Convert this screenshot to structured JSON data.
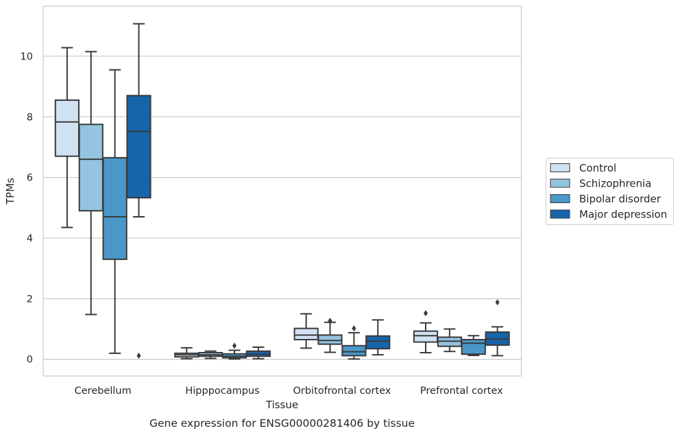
{
  "chart_data": {
    "type": "boxplot",
    "xlabel": "Tissue",
    "ylabel": "TPMs",
    "caption": "Gene expression for ENSG00000281406 by tissue",
    "categories": [
      "Cerebellum",
      "Hipppocampus",
      "Orbitofrontal cortex",
      "Prefrontal cortex"
    ],
    "ylim": [
      -0.55,
      11.65
    ],
    "yticks": [
      0,
      2,
      4,
      6,
      8,
      10
    ],
    "grid": true,
    "legend_position": "right",
    "series": [
      {
        "name": "Control",
        "color": "#d0e1f2",
        "boxes": [
          {
            "whisker_low": 4.35,
            "q1": 6.7,
            "median": 7.83,
            "q3": 8.55,
            "whisker_high": 10.28,
            "outliers": []
          },
          {
            "whisker_low": 0.02,
            "q1": 0.08,
            "median": 0.15,
            "q3": 0.2,
            "whisker_high": 0.38,
            "outliers": []
          },
          {
            "whisker_low": 0.37,
            "q1": 0.65,
            "median": 0.8,
            "q3": 1.02,
            "whisker_high": 1.5,
            "outliers": []
          },
          {
            "whisker_low": 0.22,
            "q1": 0.57,
            "median": 0.78,
            "q3": 0.93,
            "whisker_high": 1.2,
            "outliers": [
              1.52
            ]
          }
        ]
      },
      {
        "name": "Schizophrenia",
        "color": "#94c4df",
        "boxes": [
          {
            "whisker_low": 1.48,
            "q1": 4.9,
            "median": 6.6,
            "q3": 7.75,
            "whisker_high": 10.15,
            "outliers": []
          },
          {
            "whisker_low": 0.03,
            "q1": 0.1,
            "median": 0.15,
            "q3": 0.22,
            "whisker_high": 0.27,
            "outliers": []
          },
          {
            "whisker_low": 0.23,
            "q1": 0.5,
            "median": 0.62,
            "q3": 0.8,
            "whisker_high": 1.22,
            "outliers": [
              1.27,
              1.25
            ]
          },
          {
            "whisker_low": 0.26,
            "q1": 0.43,
            "median": 0.6,
            "q3": 0.73,
            "whisker_high": 1.0,
            "outliers": []
          }
        ]
      },
      {
        "name": "Bipolar disorder",
        "color": "#4a98c9",
        "boxes": [
          {
            "whisker_low": 0.2,
            "q1": 3.3,
            "median": 4.7,
            "q3": 6.65,
            "whisker_high": 9.55,
            "outliers": []
          },
          {
            "whisker_low": 0.01,
            "q1": 0.05,
            "median": 0.1,
            "q3": 0.18,
            "whisker_high": 0.3,
            "outliers": [
              0.45
            ]
          },
          {
            "whisker_low": 0.01,
            "q1": 0.12,
            "median": 0.25,
            "q3": 0.45,
            "whisker_high": 0.88,
            "outliers": [
              1.02
            ]
          },
          {
            "whisker_low": 0.13,
            "q1": 0.17,
            "median": 0.53,
            "q3": 0.65,
            "whisker_high": 0.78,
            "outliers": []
          }
        ]
      },
      {
        "name": "Major depression",
        "color": "#1764ab",
        "boxes": [
          {
            "whisker_low": 4.7,
            "q1": 5.33,
            "median": 7.52,
            "q3": 8.7,
            "whisker_high": 11.07,
            "outliers": [
              0.12
            ]
          },
          {
            "whisker_low": 0.02,
            "q1": 0.1,
            "median": 0.17,
            "q3": 0.27,
            "whisker_high": 0.4,
            "outliers": []
          },
          {
            "whisker_low": 0.15,
            "q1": 0.35,
            "median": 0.6,
            "q3": 0.77,
            "whisker_high": 1.3,
            "outliers": []
          },
          {
            "whisker_low": 0.12,
            "q1": 0.47,
            "median": 0.67,
            "q3": 0.9,
            "whisker_high": 1.07,
            "outliers": [
              1.88
            ]
          }
        ]
      }
    ]
  }
}
